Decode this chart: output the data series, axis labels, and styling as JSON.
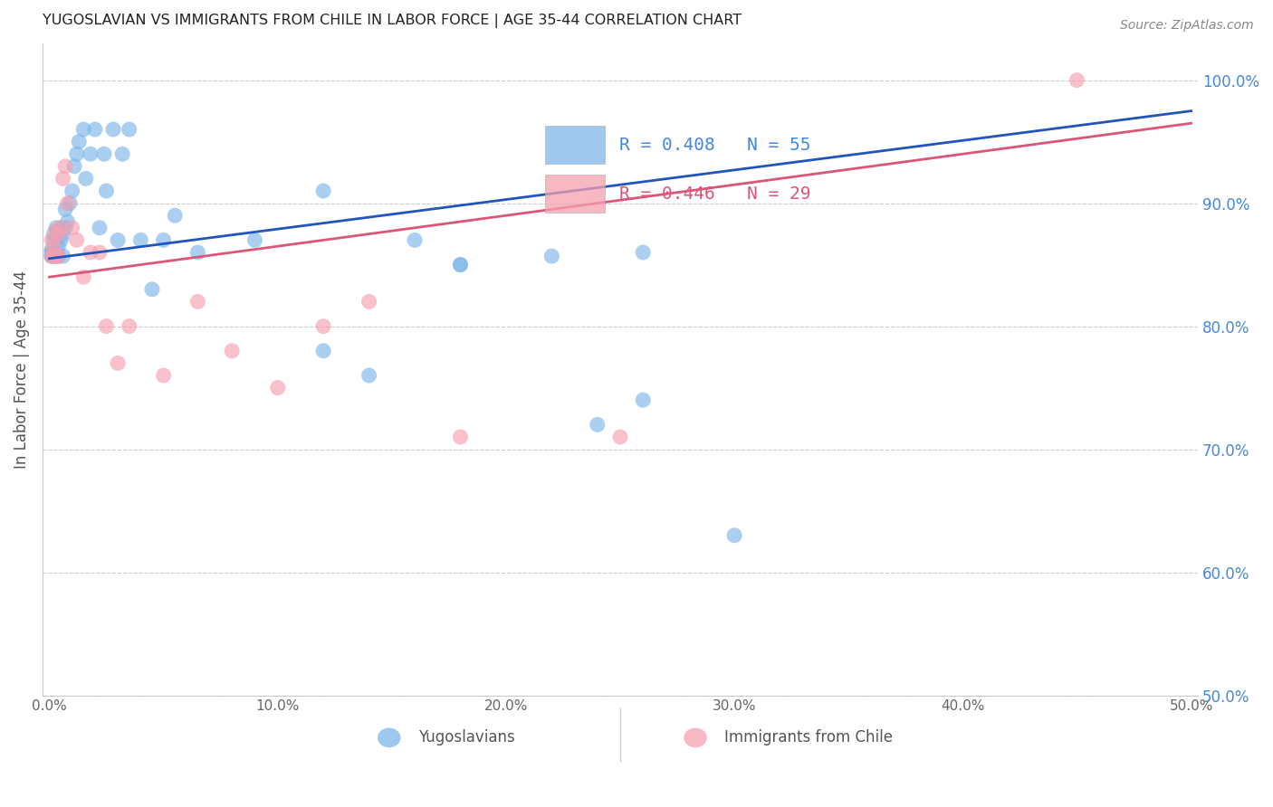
{
  "title": "YUGOSLAVIAN VS IMMIGRANTS FROM CHILE IN LABOR FORCE | AGE 35-44 CORRELATION CHART",
  "source": "Source: ZipAtlas.com",
  "ylabel": "In Labor Force | Age 35-44",
  "xlim": [
    -0.003,
    0.503
  ],
  "ylim": [
    0.5,
    1.03
  ],
  "xticks": [
    0.0,
    0.1,
    0.2,
    0.3,
    0.4,
    0.5
  ],
  "xticklabels": [
    "0.0%",
    "10.0%",
    "20.0%",
    "30.0%",
    "40.0%",
    "50.0%"
  ],
  "yticks_right": [
    1.0,
    0.9,
    0.8,
    0.7,
    0.6,
    0.5
  ],
  "ytick_right_labels": [
    "100.0%",
    "90.0%",
    "80.0%",
    "70.0%",
    "60.0%",
    "50.0%"
  ],
  "grid_color": "#cccccc",
  "blue_color": "#7EB6E8",
  "pink_color": "#F5A0B0",
  "blue_line_color": "#2255BB",
  "pink_line_color": "#DD5577",
  "right_yaxis_color": "#4488DD",
  "legend_text_blue": "R = 0.408   N = 55",
  "legend_text_pink": "R = 0.446   N = 29",
  "legend_label_blue": "Yugoslavians",
  "legend_label_pink": "Immigrants from Chile",
  "blue_x": [
    0.001,
    0.001,
    0.001,
    0.001,
    0.002,
    0.002,
    0.002,
    0.002,
    0.003,
    0.003,
    0.003,
    0.003,
    0.004,
    0.004,
    0.004,
    0.005,
    0.005,
    0.006,
    0.006,
    0.007,
    0.007,
    0.008,
    0.009,
    0.01,
    0.011,
    0.012,
    0.013,
    0.015,
    0.016,
    0.018,
    0.02,
    0.022,
    0.024,
    0.025,
    0.028,
    0.03,
    0.032,
    0.035,
    0.04,
    0.045,
    0.05,
    0.055,
    0.065,
    0.09,
    0.12,
    0.14,
    0.16,
    0.18,
    0.22,
    0.24,
    0.26,
    0.3,
    0.12,
    0.18,
    0.26
  ],
  "blue_y": [
    0.857,
    0.857,
    0.86,
    0.862,
    0.857,
    0.86,
    0.87,
    0.875,
    0.857,
    0.86,
    0.87,
    0.88,
    0.857,
    0.865,
    0.878,
    0.87,
    0.88,
    0.857,
    0.875,
    0.88,
    0.895,
    0.885,
    0.9,
    0.91,
    0.93,
    0.94,
    0.95,
    0.96,
    0.92,
    0.94,
    0.96,
    0.88,
    0.94,
    0.91,
    0.96,
    0.87,
    0.94,
    0.96,
    0.87,
    0.83,
    0.87,
    0.89,
    0.86,
    0.87,
    0.91,
    0.76,
    0.87,
    0.85,
    0.857,
    0.72,
    0.74,
    0.63,
    0.78,
    0.85,
    0.86
  ],
  "pink_x": [
    0.001,
    0.001,
    0.002,
    0.002,
    0.003,
    0.003,
    0.004,
    0.004,
    0.005,
    0.006,
    0.007,
    0.008,
    0.01,
    0.012,
    0.015,
    0.018,
    0.022,
    0.025,
    0.03,
    0.035,
    0.05,
    0.065,
    0.08,
    0.1,
    0.12,
    0.14,
    0.18,
    0.25,
    0.45
  ],
  "pink_y": [
    0.857,
    0.87,
    0.857,
    0.865,
    0.857,
    0.878,
    0.857,
    0.875,
    0.88,
    0.92,
    0.93,
    0.9,
    0.88,
    0.87,
    0.84,
    0.86,
    0.86,
    0.8,
    0.77,
    0.8,
    0.76,
    0.82,
    0.78,
    0.75,
    0.8,
    0.82,
    0.71,
    0.71,
    1.0
  ]
}
